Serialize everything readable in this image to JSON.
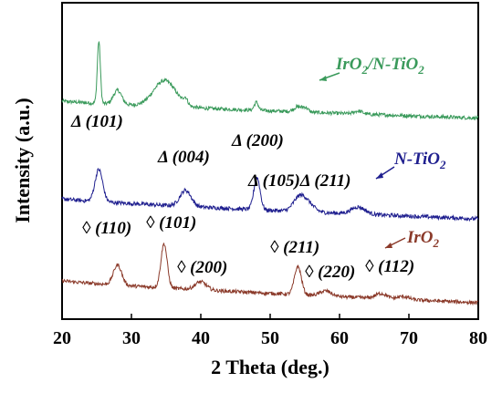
{
  "chart_data": {
    "type": "line",
    "title": "",
    "xlabel": "2 Theta (deg.)",
    "ylabel": "Intensity (a.u.)",
    "xlim": [
      20,
      80
    ],
    "xticks": [
      20,
      30,
      40,
      50,
      60,
      70,
      80
    ],
    "yticks_shown": false,
    "grid": false,
    "series": [
      {
        "name": "IrO2/N-TiO2",
        "color": "#3a9a5b",
        "baseline_start": 0.22,
        "baseline_end": 0.05,
        "noise": 0.018,
        "peaks": [
          {
            "x": 25.3,
            "h": 0.62,
            "w": 0.22
          },
          {
            "x": 28.0,
            "h": 0.14,
            "w": 0.6
          },
          {
            "x": 34.8,
            "h": 0.26,
            "w": 1.6
          },
          {
            "x": 37.8,
            "h": 0.06,
            "w": 0.3
          },
          {
            "x": 48.0,
            "h": 0.08,
            "w": 0.3
          },
          {
            "x": 54.0,
            "h": 0.05,
            "w": 0.6
          },
          {
            "x": 55.1,
            "h": 0.04,
            "w": 0.4
          },
          {
            "x": 62.7,
            "h": 0.03,
            "w": 0.6
          }
        ]
      },
      {
        "name": "N-TiO2",
        "color": "#1f1f8f",
        "baseline_start": 0.2,
        "baseline_end": 0.0,
        "noise": 0.02,
        "peaks": [
          {
            "x": 25.3,
            "h": 0.32,
            "w": 0.55
          },
          {
            "x": 37.8,
            "h": 0.16,
            "w": 0.8
          },
          {
            "x": 48.1,
            "h": 0.32,
            "w": 0.45
          },
          {
            "x": 54.0,
            "h": 0.09,
            "w": 0.8
          },
          {
            "x": 55.1,
            "h": 0.11,
            "w": 1.0
          },
          {
            "x": 62.7,
            "h": 0.07,
            "w": 1.0
          }
        ]
      },
      {
        "name": "IrO2",
        "color": "#8b3a2a",
        "baseline_start": 0.22,
        "baseline_end": 0.0,
        "noise": 0.018,
        "peaks": [
          {
            "x": 28.0,
            "h": 0.2,
            "w": 0.6
          },
          {
            "x": 34.7,
            "h": 0.44,
            "w": 0.45
          },
          {
            "x": 40.0,
            "h": 0.08,
            "w": 0.8
          },
          {
            "x": 54.0,
            "h": 0.28,
            "w": 0.5
          },
          {
            "x": 58.0,
            "h": 0.05,
            "w": 0.8
          },
          {
            "x": 66.0,
            "h": 0.05,
            "w": 0.8
          },
          {
            "x": 69.2,
            "h": 0.03,
            "w": 0.8
          }
        ]
      }
    ],
    "legend_labels": [
      {
        "series": 0,
        "main": "IrO",
        "sub": "2",
        "rest": "/N-TiO",
        "sub2": "2"
      },
      {
        "series": 1,
        "main": "N-TiO",
        "sub": "2",
        "rest": "",
        "sub2": ""
      },
      {
        "series": 2,
        "main": "IrO",
        "sub": "2",
        "rest": "",
        "sub2": ""
      }
    ],
    "annotations": [
      {
        "text": "Δ (101)",
        "series": 1
      },
      {
        "text": "Δ (004)",
        "series": 1
      },
      {
        "text": "Δ (200)",
        "series": 1
      },
      {
        "text": "Δ (105)Δ (211)",
        "series": 1
      },
      {
        "text": "◊ (110)",
        "series": 2
      },
      {
        "text": "◊ (101)",
        "series": 2
      },
      {
        "text": "◊ (200)",
        "series": 2
      },
      {
        "text": "◊ (211)",
        "series": 2
      },
      {
        "text": "◊ (220)",
        "series": 2
      },
      {
        "text": "◊ (112)",
        "series": 2
      }
    ]
  }
}
